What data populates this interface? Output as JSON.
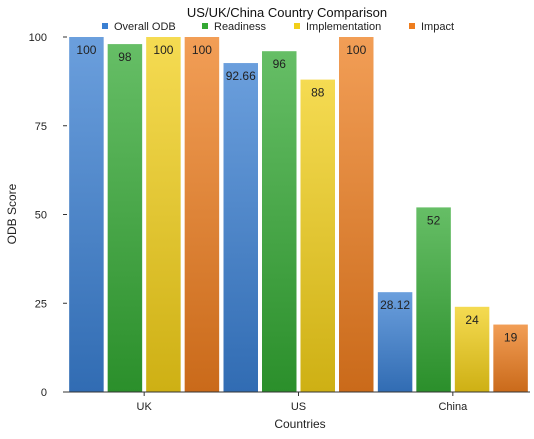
{
  "chart_data": {
    "type": "bar",
    "title": "US/UK/China Country Comparison",
    "xlabel": "Countries",
    "ylabel": "ODB Score",
    "ylim": [
      0,
      100
    ],
    "yticks": [
      0,
      25,
      50,
      75,
      100
    ],
    "categories": [
      "UK",
      "US",
      "China"
    ],
    "series": [
      {
        "name": "Overall ODB",
        "color": "#3a7fd2",
        "values": [
          100,
          92.66,
          28.12
        ],
        "labels": [
          "100",
          "92.66",
          "28.12"
        ]
      },
      {
        "name": "Readiness",
        "color": "#33a833",
        "values": [
          98,
          96,
          52
        ],
        "labels": [
          "98",
          "96",
          "52"
        ]
      },
      {
        "name": "Implementation",
        "color": "#f2cf18",
        "values": [
          100,
          88,
          24
        ],
        "labels": [
          "100",
          "88",
          "24"
        ]
      },
      {
        "name": "Impact",
        "color": "#ee7d1e",
        "values": [
          100,
          100,
          19
        ],
        "labels": [
          "100",
          "100",
          "19"
        ]
      }
    ],
    "grid": false,
    "legend_position": "top"
  }
}
